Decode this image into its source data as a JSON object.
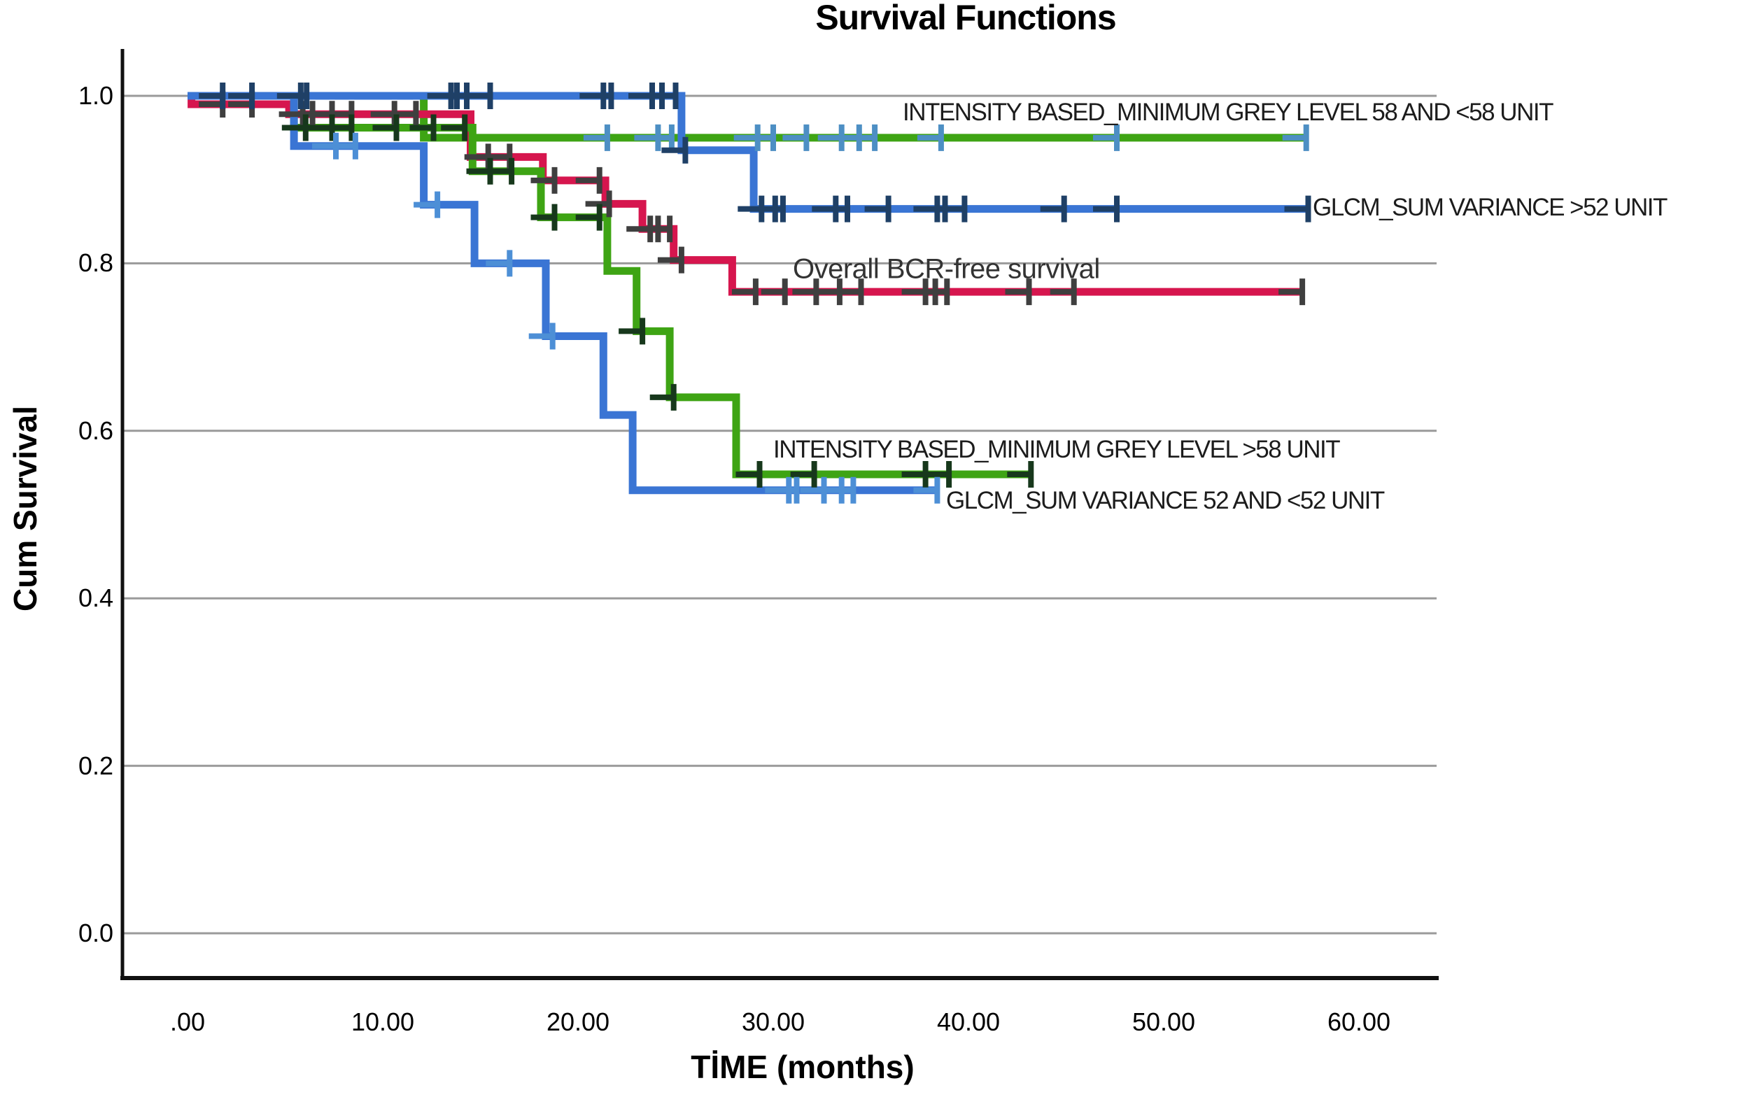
{
  "title": "Survival Functions",
  "axes": {
    "x_label": "TİME (months)",
    "y_label": "Cum Survival",
    "x_ticks": [
      ".00",
      "10.00",
      "20.00",
      "30.00",
      "40.00",
      "50.00",
      "60.00"
    ],
    "x_tick_values": [
      0,
      10,
      20,
      30,
      40,
      50,
      60
    ],
    "y_ticks": [
      "1.0",
      "0.8",
      "0.6",
      "0.4",
      "0.2",
      "0.0"
    ],
    "y_tick_values": [
      1.0,
      0.8,
      0.6,
      0.4,
      0.2,
      0.0
    ],
    "grid_color": "#9a9a9a",
    "axis_color": "#111111",
    "background": "#ffffff"
  },
  "chart_data": {
    "type": "line",
    "subtype": "kaplan-meier-step",
    "title": "Survival Functions",
    "xlabel": "TİME (months)",
    "ylabel": "Cum Survival",
    "xlim": [
      0,
      64
    ],
    "ylim": [
      -0.05,
      1.05
    ],
    "grid": "horizontal",
    "legend_position": "inline-labels",
    "series": [
      {
        "name": "INTENSITY BASED_MINIMUM GREY LEVEL 58 AND <58 UNIT",
        "color": "#3ea414",
        "censor_color": "#4d8fc4",
        "steps": [
          [
            0,
            1.0
          ],
          [
            12.1,
            1.0
          ],
          [
            12.1,
            0.95
          ],
          [
            57.3,
            0.95
          ]
        ],
        "censors": [
          [
            21.5,
            0.95
          ],
          [
            24.1,
            0.95
          ],
          [
            24.8,
            0.95
          ],
          [
            29.2,
            0.95
          ],
          [
            30.0,
            0.95
          ],
          [
            31.7,
            0.95
          ],
          [
            33.5,
            0.95
          ],
          [
            34.4,
            0.95
          ],
          [
            35.2,
            0.95
          ],
          [
            38.6,
            0.95
          ],
          [
            47.6,
            0.95
          ],
          [
            57.3,
            0.95
          ]
        ]
      },
      {
        "name": "GLCM_SUM VARIANCE >52 UNIT",
        "color": "#3a75d4",
        "censor_color": "#1f4066",
        "steps": [
          [
            0,
            1.0
          ],
          [
            25.3,
            1.0
          ],
          [
            25.3,
            0.935
          ],
          [
            29.0,
            0.935
          ],
          [
            29.0,
            0.865
          ],
          [
            57.4,
            0.865
          ]
        ],
        "censors": [
          [
            1.8,
            1.0
          ],
          [
            3.3,
            1.0
          ],
          [
            5.8,
            1.0
          ],
          [
            6.1,
            1.0
          ],
          [
            13.5,
            1.0
          ],
          [
            13.8,
            1.0
          ],
          [
            14.3,
            1.0
          ],
          [
            15.5,
            1.0
          ],
          [
            21.3,
            1.0
          ],
          [
            21.7,
            1.0
          ],
          [
            23.8,
            1.0
          ],
          [
            24.3,
            1.0
          ],
          [
            25.0,
            1.0
          ],
          [
            25.5,
            0.935
          ],
          [
            29.4,
            0.865
          ],
          [
            30.1,
            0.865
          ],
          [
            30.5,
            0.865
          ],
          [
            33.2,
            0.865
          ],
          [
            33.8,
            0.865
          ],
          [
            35.9,
            0.865
          ],
          [
            38.4,
            0.865
          ],
          [
            38.8,
            0.865
          ],
          [
            39.8,
            0.865
          ],
          [
            44.9,
            0.865
          ],
          [
            47.6,
            0.865
          ],
          [
            57.4,
            0.865
          ]
        ]
      },
      {
        "name": "Overall BCR-free survival",
        "color": "#d6164e",
        "censor_color": "#3f3f3f",
        "steps": [
          [
            0,
            1.0
          ],
          [
            0.2,
            1.0
          ],
          [
            0.2,
            0.99
          ],
          [
            5.2,
            0.99
          ],
          [
            5.2,
            0.978
          ],
          [
            14.5,
            0.978
          ],
          [
            14.5,
            0.927
          ],
          [
            18.2,
            0.927
          ],
          [
            18.2,
            0.899
          ],
          [
            21.4,
            0.899
          ],
          [
            21.4,
            0.871
          ],
          [
            23.3,
            0.871
          ],
          [
            23.3,
            0.841
          ],
          [
            24.9,
            0.841
          ],
          [
            24.9,
            0.804
          ],
          [
            27.9,
            0.804
          ],
          [
            27.9,
            0.766
          ],
          [
            57.1,
            0.766
          ]
        ],
        "censors": [
          [
            1.8,
            0.99
          ],
          [
            3.3,
            0.99
          ],
          [
            5.9,
            0.978
          ],
          [
            6.4,
            0.978
          ],
          [
            7.4,
            0.978
          ],
          [
            8.4,
            0.978
          ],
          [
            10.6,
            0.978
          ],
          [
            11.7,
            0.978
          ],
          [
            15.4,
            0.927
          ],
          [
            16.5,
            0.927
          ],
          [
            18.8,
            0.899
          ],
          [
            21.1,
            0.899
          ],
          [
            21.6,
            0.871
          ],
          [
            23.7,
            0.841
          ],
          [
            24.1,
            0.841
          ],
          [
            24.7,
            0.841
          ],
          [
            25.3,
            0.804
          ],
          [
            29.1,
            0.766
          ],
          [
            30.6,
            0.766
          ],
          [
            32.2,
            0.766
          ],
          [
            33.4,
            0.766
          ],
          [
            34.5,
            0.766
          ],
          [
            37.8,
            0.766
          ],
          [
            38.3,
            0.766
          ],
          [
            38.9,
            0.766
          ],
          [
            43.1,
            0.766
          ],
          [
            45.4,
            0.766
          ],
          [
            57.1,
            0.766
          ]
        ]
      },
      {
        "name": "INTENSITY BASED_MINIMUM GREY LEVEL >58 UNIT",
        "color": "#3ea414",
        "censor_color": "#17381c",
        "steps": [
          [
            0,
            1.0
          ],
          [
            5.45,
            1.0
          ],
          [
            5.45,
            0.962
          ],
          [
            14.6,
            0.962
          ],
          [
            14.6,
            0.91
          ],
          [
            18.1,
            0.91
          ],
          [
            18.1,
            0.855
          ],
          [
            21.5,
            0.855
          ],
          [
            21.5,
            0.791
          ],
          [
            23.0,
            0.791
          ],
          [
            23.0,
            0.719
          ],
          [
            24.7,
            0.719
          ],
          [
            24.7,
            0.64
          ],
          [
            28.1,
            0.64
          ],
          [
            28.1,
            0.548
          ],
          [
            43.3,
            0.548
          ]
        ],
        "censors": [
          [
            6.05,
            0.962
          ],
          [
            7.4,
            0.962
          ],
          [
            8.4,
            0.962
          ],
          [
            10.7,
            0.962
          ],
          [
            12.6,
            0.962
          ],
          [
            14.2,
            0.962
          ],
          [
            15.5,
            0.91
          ],
          [
            16.6,
            0.91
          ],
          [
            18.8,
            0.855
          ],
          [
            21.1,
            0.855
          ],
          [
            23.3,
            0.719
          ],
          [
            24.9,
            0.64
          ],
          [
            29.3,
            0.548
          ],
          [
            32.1,
            0.548
          ],
          [
            37.8,
            0.548
          ],
          [
            39.0,
            0.548
          ],
          [
            43.2,
            0.548
          ]
        ]
      },
      {
        "name": "GLCM_SUM VARIANCE 52 AND <52 UNIT",
        "color": "#3a75d4",
        "censor_color": "#4d8fd6",
        "steps": [
          [
            0,
            1.0
          ],
          [
            5.45,
            1.0
          ],
          [
            5.45,
            0.94
          ],
          [
            12.1,
            0.94
          ],
          [
            12.1,
            0.87
          ],
          [
            14.7,
            0.87
          ],
          [
            14.7,
            0.8
          ],
          [
            18.35,
            0.8
          ],
          [
            18.35,
            0.713
          ],
          [
            21.3,
            0.713
          ],
          [
            21.3,
            0.619
          ],
          [
            22.8,
            0.619
          ],
          [
            22.8,
            0.529
          ],
          [
            38.5,
            0.529
          ]
        ],
        "censors": [
          [
            7.6,
            0.94
          ],
          [
            8.6,
            0.94
          ],
          [
            12.8,
            0.87
          ],
          [
            16.5,
            0.8
          ],
          [
            18.7,
            0.713
          ],
          [
            30.8,
            0.529
          ],
          [
            31.2,
            0.529
          ],
          [
            32.6,
            0.529
          ],
          [
            33.5,
            0.529
          ],
          [
            34.1,
            0.529
          ],
          [
            38.4,
            0.529
          ]
        ]
      }
    ]
  }
}
